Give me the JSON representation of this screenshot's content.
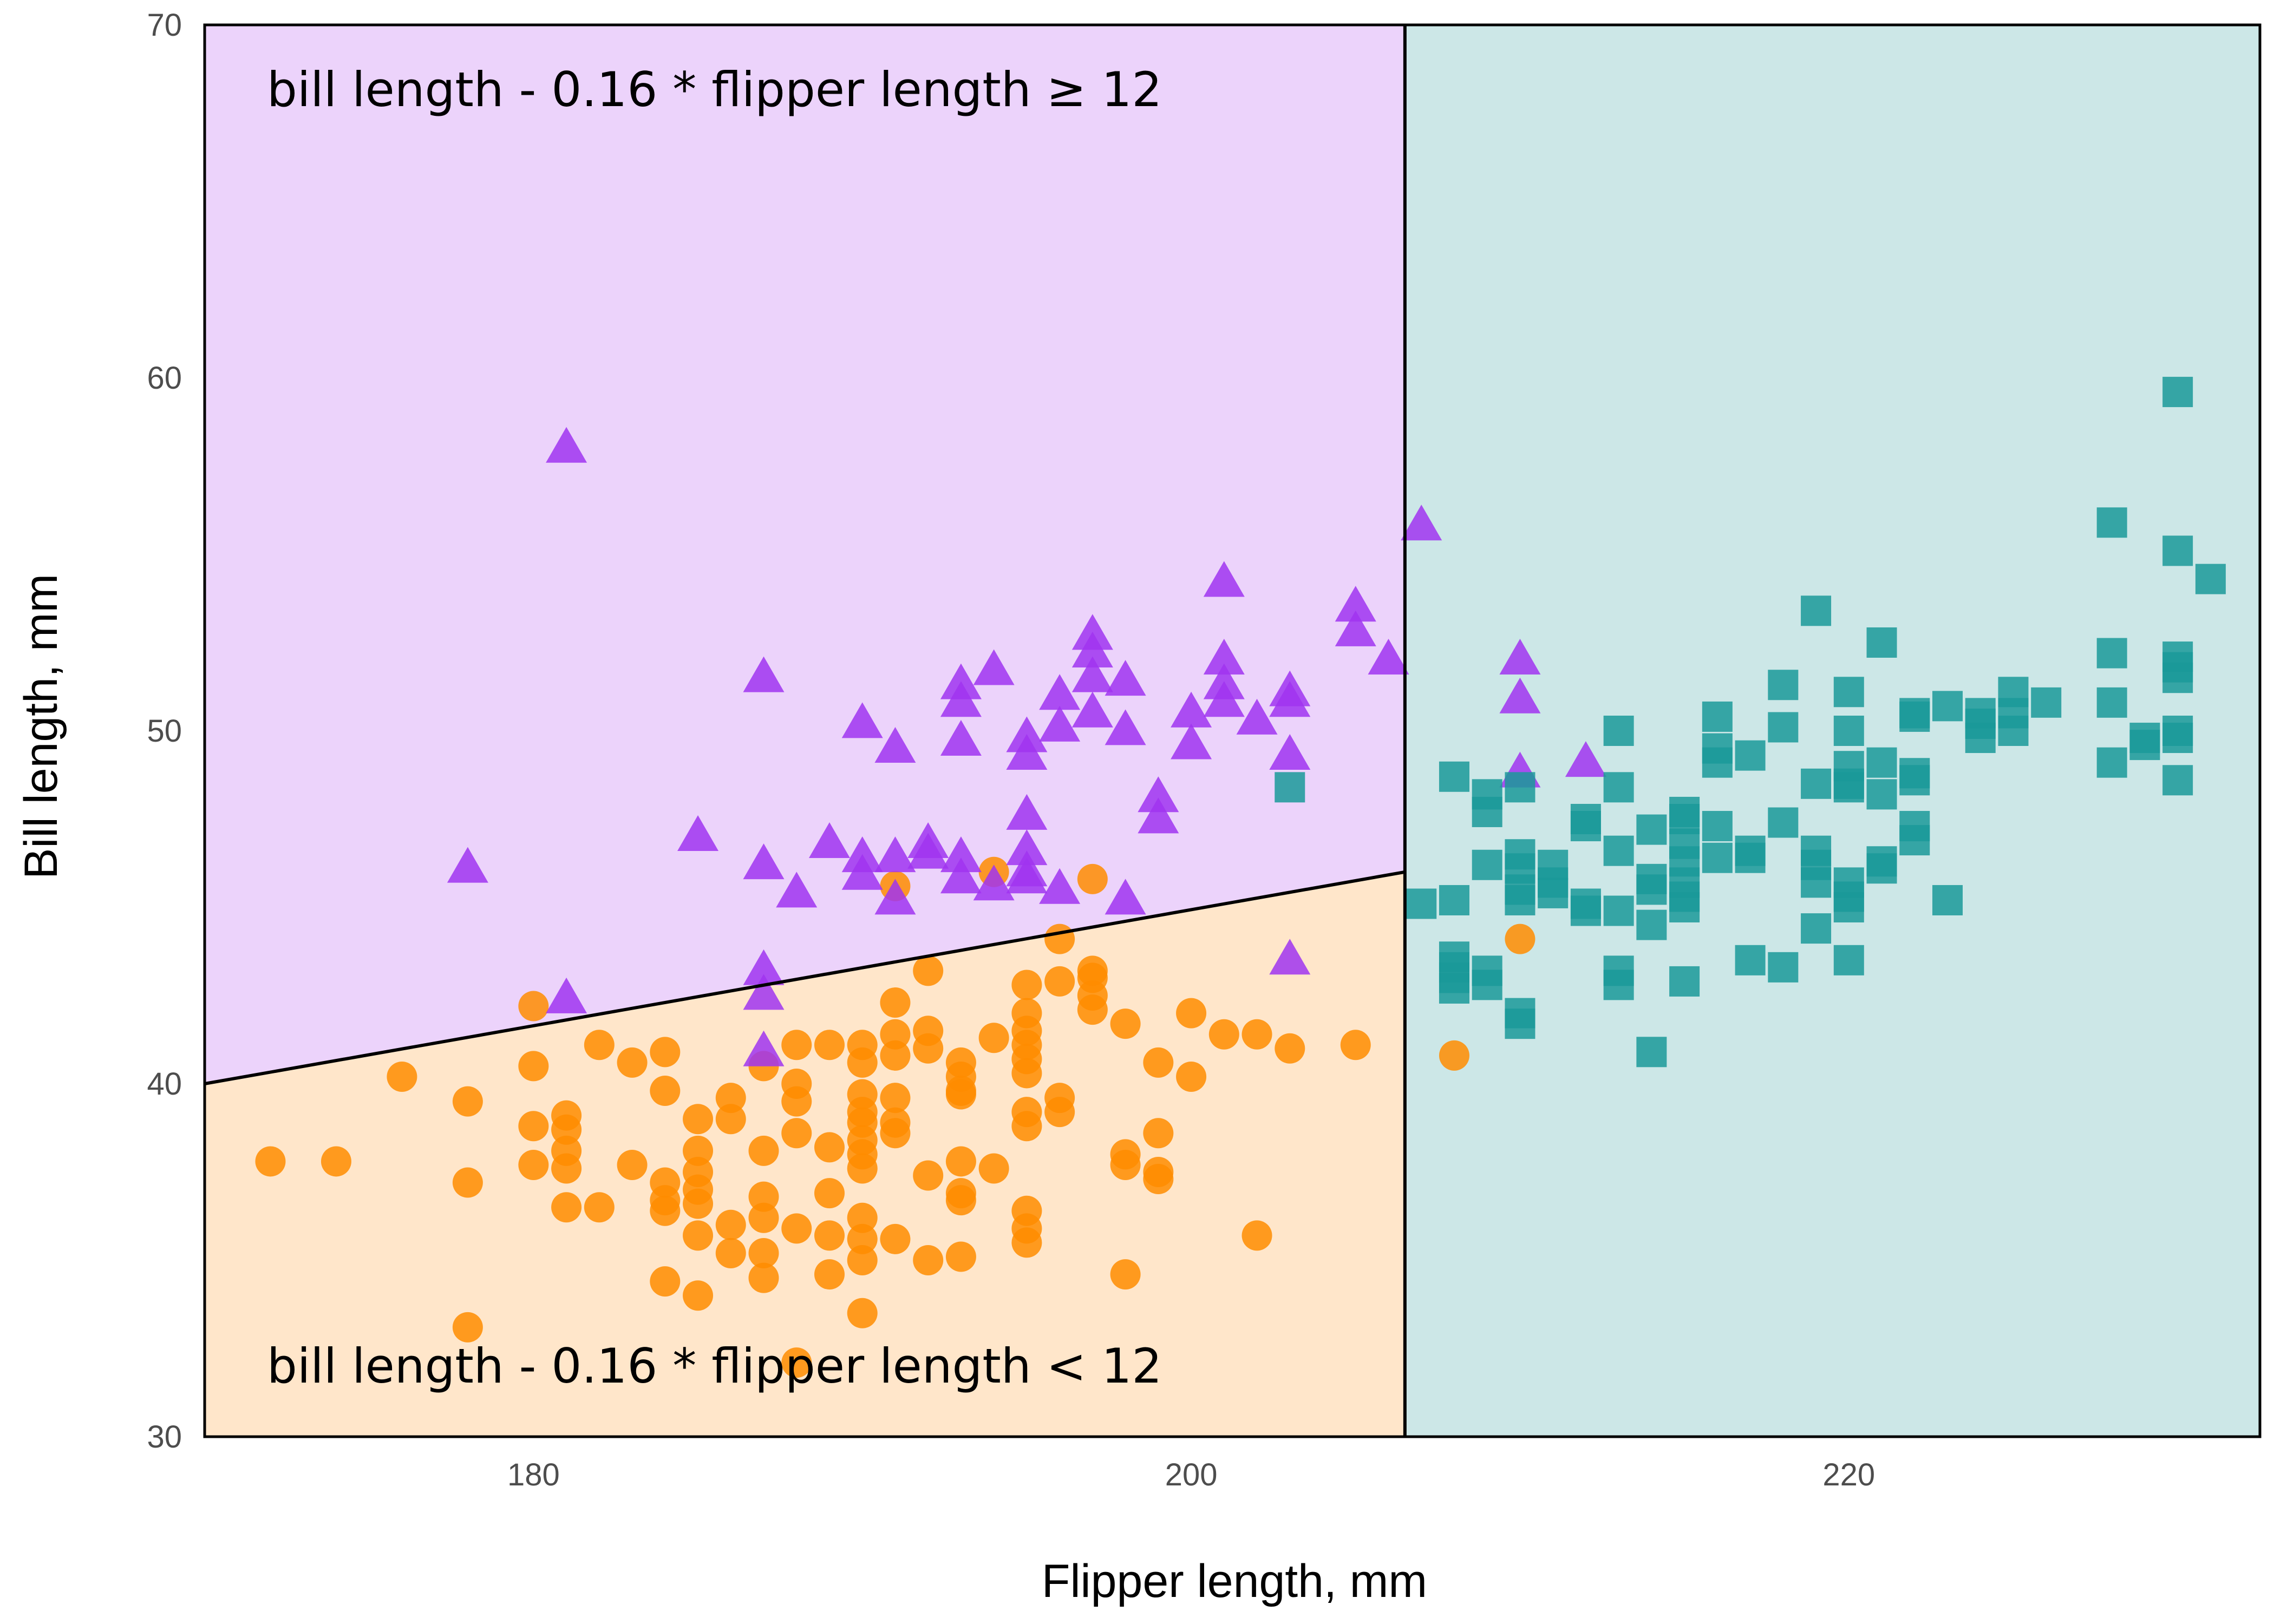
{
  "chart_data": {
    "type": "scatter",
    "title": "",
    "xlabel": "Flipper length, mm",
    "ylabel": "Bill length, mm",
    "xlim": [
      170,
      232.5
    ],
    "ylim": [
      30,
      70
    ],
    "xticks": [
      180,
      200,
      220
    ],
    "yticks": [
      30,
      40,
      50,
      60,
      70
    ],
    "grid": false,
    "legend": "none",
    "regions": {
      "top_left": {
        "fill": "#ecd3fb",
        "label": "bill length - 0.16 * flipper length ≥ 12"
      },
      "bottom_left": {
        "fill": "#ffe6ca",
        "label": "bill length - 0.16 * flipper length < 12"
      },
      "right": {
        "fill": "#cce7e7"
      },
      "boundary_line": {
        "x": [
          170,
          206.5
        ],
        "y": [
          40,
          46
        ]
      },
      "vertical_split_x": 206.5,
      "line_color": "#000000"
    },
    "series": [
      {
        "marker": "circle",
        "color": "#ff8c00",
        "points": [
          [
            172,
            37.8
          ],
          [
            174,
            37.8
          ],
          [
            176,
            40.2
          ],
          [
            178,
            39.5
          ],
          [
            178,
            37.2
          ],
          [
            178,
            33.1
          ],
          [
            180,
            42.2
          ],
          [
            180,
            40.5
          ],
          [
            180,
            38.8
          ],
          [
            180,
            37.7
          ],
          [
            181,
            39.1
          ],
          [
            181,
            38.7
          ],
          [
            181,
            38.1
          ],
          [
            181,
            37.6
          ],
          [
            181,
            36.5
          ],
          [
            182,
            41.1
          ],
          [
            182,
            36.5
          ],
          [
            183,
            40.6
          ],
          [
            183,
            37.7
          ],
          [
            184,
            40.9
          ],
          [
            184,
            39.8
          ],
          [
            184,
            37.2
          ],
          [
            184,
            36.7
          ],
          [
            184,
            36.4
          ],
          [
            184,
            34.4
          ],
          [
            185,
            39.0
          ],
          [
            185,
            38.1
          ],
          [
            185,
            37.5
          ],
          [
            185,
            37.0
          ],
          [
            185,
            36.6
          ],
          [
            185,
            35.7
          ],
          [
            185,
            34.0
          ],
          [
            186,
            39.6
          ],
          [
            186,
            39.0
          ],
          [
            186,
            36.0
          ],
          [
            186,
            35.2
          ],
          [
            187,
            40.5
          ],
          [
            187,
            38.1
          ],
          [
            187,
            36.8
          ],
          [
            187,
            36.2
          ],
          [
            187,
            35.2
          ],
          [
            187,
            34.5
          ],
          [
            188,
            41.1
          ],
          [
            188,
            40.0
          ],
          [
            188,
            39.5
          ],
          [
            188,
            38.6
          ],
          [
            188,
            35.9
          ],
          [
            188,
            32.1
          ],
          [
            189,
            41.1
          ],
          [
            189,
            38.2
          ],
          [
            189,
            36.9
          ],
          [
            189,
            35.7
          ],
          [
            189,
            34.6
          ],
          [
            190,
            41.1
          ],
          [
            190,
            40.6
          ],
          [
            190,
            39.7
          ],
          [
            190,
            39.2
          ],
          [
            190,
            38.9
          ],
          [
            190,
            38.4
          ],
          [
            190,
            38.0
          ],
          [
            190,
            37.6
          ],
          [
            190,
            36.2
          ],
          [
            190,
            35.6
          ],
          [
            190,
            35.0
          ],
          [
            190,
            33.5
          ],
          [
            191,
            45.6
          ],
          [
            191,
            42.3
          ],
          [
            191,
            41.4
          ],
          [
            191,
            40.8
          ],
          [
            191,
            39.6
          ],
          [
            191,
            38.9
          ],
          [
            191,
            38.6
          ],
          [
            191,
            35.6
          ],
          [
            192,
            43.2
          ],
          [
            192,
            41.5
          ],
          [
            192,
            41.0
          ],
          [
            192,
            37.4
          ],
          [
            192,
            35.0
          ],
          [
            193,
            40.6
          ],
          [
            193,
            40.2
          ],
          [
            193,
            39.8
          ],
          [
            193,
            39.7
          ],
          [
            193,
            37.8
          ],
          [
            193,
            36.9
          ],
          [
            193,
            36.7
          ],
          [
            193,
            35.1
          ],
          [
            194,
            46.0
          ],
          [
            194,
            41.3
          ],
          [
            194,
            37.6
          ],
          [
            195,
            42.8
          ],
          [
            195,
            42.0
          ],
          [
            195,
            41.5
          ],
          [
            195,
            41.1
          ],
          [
            195,
            40.7
          ],
          [
            195,
            40.3
          ],
          [
            195,
            39.2
          ],
          [
            195,
            38.8
          ],
          [
            195,
            36.4
          ],
          [
            195,
            35.9
          ],
          [
            195,
            35.5
          ],
          [
            196,
            44.1
          ],
          [
            196,
            42.9
          ],
          [
            196,
            39.6
          ],
          [
            196,
            39.2
          ],
          [
            197,
            45.8
          ],
          [
            197,
            43.2
          ],
          [
            197,
            43.0
          ],
          [
            197,
            42.5
          ],
          [
            197,
            42.1
          ],
          [
            198,
            41.7
          ],
          [
            198,
            38.0
          ],
          [
            198,
            37.7
          ],
          [
            198,
            34.6
          ],
          [
            199,
            40.6
          ],
          [
            199,
            38.6
          ],
          [
            199,
            37.5
          ],
          [
            199,
            37.3
          ],
          [
            200,
            42.0
          ],
          [
            200,
            40.2
          ],
          [
            201,
            41.4
          ],
          [
            202,
            41.4
          ],
          [
            202,
            35.7
          ],
          [
            203,
            41.0
          ],
          [
            205,
            41.1
          ],
          [
            208,
            40.8
          ],
          [
            210,
            44.1
          ]
        ]
      },
      {
        "marker": "triangle",
        "color": "#a034f0",
        "points": [
          [
            178,
            46.1
          ],
          [
            181,
            58.0
          ],
          [
            181,
            42.4
          ],
          [
            185,
            47.0
          ],
          [
            187,
            51.5
          ],
          [
            187,
            46.2
          ],
          [
            187,
            43.2
          ],
          [
            187,
            42.5
          ],
          [
            187,
            40.9
          ],
          [
            188,
            45.4
          ],
          [
            189,
            46.8
          ],
          [
            190,
            50.2
          ],
          [
            190,
            46.4
          ],
          [
            190,
            45.9
          ],
          [
            191,
            49.5
          ],
          [
            191,
            46.4
          ],
          [
            191,
            45.2
          ],
          [
            192,
            46.8
          ],
          [
            192,
            46.5
          ],
          [
            193,
            51.3
          ],
          [
            193,
            50.8
          ],
          [
            193,
            49.7
          ],
          [
            193,
            46.4
          ],
          [
            193,
            45.8
          ],
          [
            194,
            51.7
          ],
          [
            194,
            45.6
          ],
          [
            195,
            49.8
          ],
          [
            195,
            49.3
          ],
          [
            195,
            47.6
          ],
          [
            195,
            46.6
          ],
          [
            195,
            46.0
          ],
          [
            195,
            45.8
          ],
          [
            196,
            51.0
          ],
          [
            196,
            50.1
          ],
          [
            196,
            45.5
          ],
          [
            197,
            52.7
          ],
          [
            197,
            52.2
          ],
          [
            197,
            51.5
          ],
          [
            197,
            50.5
          ],
          [
            198,
            51.4
          ],
          [
            198,
            50.0
          ],
          [
            198,
            45.2
          ],
          [
            199,
            48.1
          ],
          [
            199,
            47.5
          ],
          [
            200,
            50.5
          ],
          [
            200,
            49.6
          ],
          [
            201,
            54.2
          ],
          [
            201,
            52.0
          ],
          [
            201,
            51.3
          ],
          [
            201,
            50.8
          ],
          [
            202,
            50.3
          ],
          [
            203,
            51.1
          ],
          [
            203,
            50.8
          ],
          [
            203,
            49.3
          ],
          [
            203,
            43.5
          ],
          [
            205,
            53.5
          ],
          [
            205,
            52.8
          ],
          [
            206,
            52.0
          ],
          [
            207,
            55.8
          ],
          [
            210,
            52.0
          ],
          [
            210,
            50.9
          ],
          [
            210,
            48.8
          ],
          [
            212,
            49.1
          ]
        ]
      },
      {
        "marker": "square",
        "color": "#1a9999",
        "points": [
          [
            203,
            48.4
          ],
          [
            207,
            45.1
          ],
          [
            208,
            48.7
          ],
          [
            208,
            45.2
          ],
          [
            208,
            43.6
          ],
          [
            208,
            43.3
          ],
          [
            208,
            43.0
          ],
          [
            208,
            42.7
          ],
          [
            209,
            48.2
          ],
          [
            209,
            47.7
          ],
          [
            209,
            46.2
          ],
          [
            209,
            43.2
          ],
          [
            209,
            42.8
          ],
          [
            210,
            48.4
          ],
          [
            210,
            46.5
          ],
          [
            210,
            46.1
          ],
          [
            210,
            45.5
          ],
          [
            210,
            45.2
          ],
          [
            210,
            42.0
          ],
          [
            210,
            41.7
          ],
          [
            211,
            46.2
          ],
          [
            211,
            45.7
          ],
          [
            211,
            45.4
          ],
          [
            212,
            47.5
          ],
          [
            212,
            47.3
          ],
          [
            212,
            45.1
          ],
          [
            212,
            44.9
          ],
          [
            213,
            50.0
          ],
          [
            213,
            48.4
          ],
          [
            213,
            46.6
          ],
          [
            213,
            44.9
          ],
          [
            213,
            43.2
          ],
          [
            213,
            42.8
          ],
          [
            214,
            47.2
          ],
          [
            214,
            45.8
          ],
          [
            214,
            45.5
          ],
          [
            214,
            44.5
          ],
          [
            214,
            40.9
          ],
          [
            215,
            47.7
          ],
          [
            215,
            47.5
          ],
          [
            215,
            46.8
          ],
          [
            215,
            46.3
          ],
          [
            215,
            45.7
          ],
          [
            215,
            45.3
          ],
          [
            215,
            45.0
          ],
          [
            215,
            42.9
          ],
          [
            216,
            50.4
          ],
          [
            216,
            49.5
          ],
          [
            216,
            49.1
          ],
          [
            216,
            47.3
          ],
          [
            216,
            46.4
          ],
          [
            217,
            49.3
          ],
          [
            217,
            46.6
          ],
          [
            217,
            46.4
          ],
          [
            217,
            43.5
          ],
          [
            218,
            51.3
          ],
          [
            218,
            50.1
          ],
          [
            218,
            47.4
          ],
          [
            218,
            43.3
          ],
          [
            219,
            53.4
          ],
          [
            219,
            48.5
          ],
          [
            219,
            46.6
          ],
          [
            219,
            46.2
          ],
          [
            219,
            45.7
          ],
          [
            219,
            44.4
          ],
          [
            220,
            51.1
          ],
          [
            220,
            50.0
          ],
          [
            220,
            49.0
          ],
          [
            220,
            48.5
          ],
          [
            220,
            48.4
          ],
          [
            220,
            45.7
          ],
          [
            220,
            45.3
          ],
          [
            220,
            45.0
          ],
          [
            220,
            43.5
          ],
          [
            221,
            52.5
          ],
          [
            221,
            49.1
          ],
          [
            221,
            48.2
          ],
          [
            221,
            46.3
          ],
          [
            221,
            46.1
          ],
          [
            222,
            50.5
          ],
          [
            222,
            50.4
          ],
          [
            222,
            48.8
          ],
          [
            222,
            48.6
          ],
          [
            222,
            47.3
          ],
          [
            222,
            46.9
          ],
          [
            223,
            50.7
          ],
          [
            223,
            45.2
          ],
          [
            224,
            50.5
          ],
          [
            224,
            50.2
          ],
          [
            224,
            49.8
          ],
          [
            225,
            51.1
          ],
          [
            225,
            50.5
          ],
          [
            225,
            50.0
          ],
          [
            226,
            50.8
          ],
          [
            228,
            55.9
          ],
          [
            228,
            52.2
          ],
          [
            228,
            50.8
          ],
          [
            228,
            49.1
          ],
          [
            229,
            49.8
          ],
          [
            229,
            49.6
          ],
          [
            230,
            59.6
          ],
          [
            230,
            55.1
          ],
          [
            230,
            52.1
          ],
          [
            230,
            51.8
          ],
          [
            230,
            51.5
          ],
          [
            230,
            50.0
          ],
          [
            230,
            49.8
          ],
          [
            230,
            48.6
          ],
          [
            231,
            54.3
          ]
        ]
      }
    ]
  }
}
